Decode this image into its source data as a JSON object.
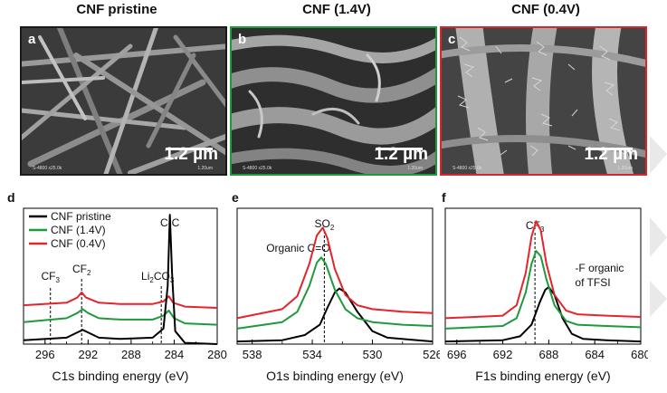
{
  "columns": [
    {
      "title": "CNF pristine",
      "letter": "a",
      "border": "#1a1a1a",
      "scale": "1.2 µm",
      "meta": "S-4800 x25.0k",
      "meta2": "1.20um"
    },
    {
      "title": "CNF (1.4V)",
      "letter": "b",
      "border": "#1e9a3c",
      "scale": "1.2 µm",
      "meta": "S-4800 x25.0k",
      "meta2": "1.20um"
    },
    {
      "title": "CNF (0.4V)",
      "letter": "c",
      "border": "#d9252b",
      "scale": "1.2 µm",
      "meta": "S-4800 x25.0k",
      "meta2": "1.20um"
    }
  ],
  "colors": {
    "pristine": "#000000",
    "v14": "#1e9a3c",
    "v04": "#e3252b"
  },
  "chart_data": [
    {
      "type": "line",
      "letter": "d",
      "xlabel": "C1s binding energy (eV)",
      "xlim": [
        280,
        298
      ],
      "reversed_x": true,
      "xticks": [
        296,
        292,
        288,
        284,
        280
      ],
      "legend": [
        "CNF pristine",
        "CNF (1.4V)",
        "CNF (0.4V)"
      ],
      "annotations": [
        {
          "text": "C-C",
          "x": 284.4
        },
        {
          "text": "CF",
          "sub": "3",
          "x": 295.5
        },
        {
          "text": "CF",
          "sub": "2",
          "x": 292.6
        },
        {
          "text": "Li",
          "sub": "2",
          "text2": "CO",
          "sub2": "3",
          "x": 285.2
        }
      ],
      "series": [
        {
          "name": "CNF pristine",
          "x": [
            298,
            294,
            293,
            292.5,
            292,
            291,
            289,
            286,
            285,
            284.6,
            284.4,
            284.2,
            283.9,
            283,
            280
          ],
          "y": [
            0.03,
            0.05,
            0.09,
            0.11,
            0.09,
            0.05,
            0.04,
            0.05,
            0.12,
            0.45,
            1.0,
            0.55,
            0.1,
            0.01,
            0.0
          ]
        },
        {
          "name": "CNF (1.4V)",
          "x": [
            298,
            294,
            293,
            292.5,
            292,
            291,
            289,
            286,
            285,
            284.5,
            284,
            283,
            280
          ],
          "y": [
            0.17,
            0.2,
            0.24,
            0.27,
            0.24,
            0.2,
            0.19,
            0.19,
            0.22,
            0.26,
            0.2,
            0.16,
            0.15
          ]
        },
        {
          "name": "CNF (0.4V)",
          "x": [
            298,
            294,
            293,
            292.6,
            292.2,
            291,
            289,
            286,
            285,
            284.5,
            284.1,
            283,
            280
          ],
          "y": [
            0.3,
            0.32,
            0.36,
            0.4,
            0.36,
            0.32,
            0.31,
            0.31,
            0.33,
            0.37,
            0.32,
            0.29,
            0.28
          ]
        }
      ]
    },
    {
      "type": "line",
      "letter": "e",
      "xlabel": "O1s binding energy (eV)",
      "xlim": [
        526,
        539
      ],
      "reversed_x": true,
      "xticks": [
        538,
        534,
        530,
        526
      ],
      "annotations": [
        {
          "text": "SO",
          "sub": "2",
          "x": 533.2
        },
        {
          "text": "Organic C=O",
          "x": 533.5
        }
      ],
      "series": [
        {
          "name": "CNF pristine",
          "x": [
            539,
            536,
            534.5,
            533.5,
            533,
            532.5,
            532.2,
            531.8,
            531,
            530,
            529,
            527,
            526
          ],
          "y": [
            0.02,
            0.03,
            0.07,
            0.15,
            0.28,
            0.4,
            0.43,
            0.4,
            0.25,
            0.1,
            0.05,
            0.03,
            0.02
          ]
        },
        {
          "name": "CNF (1.4V)",
          "x": [
            539,
            536,
            535,
            534.2,
            533.7,
            533.4,
            533.1,
            532.5,
            531.8,
            531,
            530,
            528,
            526
          ],
          "y": [
            0.12,
            0.17,
            0.25,
            0.45,
            0.63,
            0.67,
            0.62,
            0.42,
            0.27,
            0.2,
            0.17,
            0.15,
            0.14
          ]
        },
        {
          "name": "CNF (0.4V)",
          "x": [
            539,
            536,
            535,
            534.2,
            533.7,
            533.3,
            533,
            532.5,
            531.8,
            531,
            530,
            528,
            526
          ],
          "y": [
            0.2,
            0.27,
            0.37,
            0.62,
            0.84,
            0.9,
            0.82,
            0.58,
            0.38,
            0.3,
            0.27,
            0.25,
            0.24
          ]
        }
      ]
    },
    {
      "type": "line",
      "letter": "f",
      "xlabel": "F1s binding energy (eV)",
      "xlim": [
        680,
        697
      ],
      "reversed_x": true,
      "xticks": [
        696,
        692,
        688,
        684,
        680
      ],
      "annotations": [
        {
          "text": "CF",
          "sub": "3",
          "x": 689.2
        },
        {
          "text": "-F organic",
          "x": 686.5
        },
        {
          "text": "of TFSI",
          "x": 686.5
        }
      ],
      "series": [
        {
          "name": "CNF pristine",
          "x": [
            697,
            692,
            690.5,
            689.5,
            688.8,
            688.3,
            688,
            687.5,
            686.8,
            686,
            685,
            683,
            680
          ],
          "y": [
            0.02,
            0.03,
            0.06,
            0.15,
            0.32,
            0.42,
            0.44,
            0.38,
            0.2,
            0.08,
            0.04,
            0.03,
            0.02
          ]
        },
        {
          "name": "CNF (1.4V)",
          "x": [
            697,
            692,
            690.8,
            690,
            689.5,
            689.1,
            688.7,
            688.2,
            687.5,
            686.5,
            685.5,
            683,
            680
          ],
          "y": [
            0.12,
            0.14,
            0.2,
            0.4,
            0.62,
            0.72,
            0.68,
            0.5,
            0.3,
            0.18,
            0.15,
            0.14,
            0.13
          ]
        },
        {
          "name": "CNF (0.4V)",
          "x": [
            697,
            692,
            690.8,
            690,
            689.5,
            689.1,
            688.7,
            688.2,
            687.5,
            686.5,
            685.5,
            683,
            680
          ],
          "y": [
            0.2,
            0.22,
            0.3,
            0.55,
            0.83,
            0.95,
            0.88,
            0.62,
            0.38,
            0.26,
            0.23,
            0.22,
            0.21
          ]
        }
      ]
    }
  ]
}
